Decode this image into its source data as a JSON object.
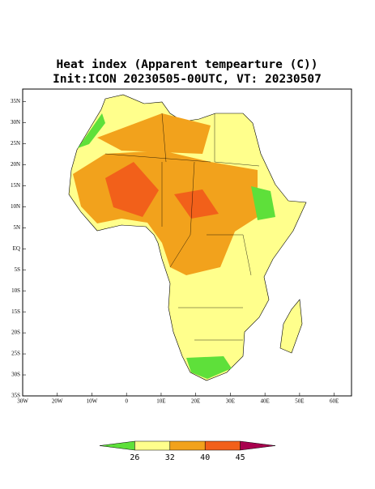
{
  "chart_data": {
    "type": "map",
    "title": "Heat index (Apparent tempearture (C))",
    "subtitle": "Init:ICON 20230505-00UTC, VT: 20230507",
    "xlim": [
      -30,
      65
    ],
    "ylim": [
      -35,
      38
    ],
    "xticks": [
      {
        "value": -30,
        "label": "30W"
      },
      {
        "value": -20,
        "label": "20W"
      },
      {
        "value": -10,
        "label": "10W"
      },
      0,
      {
        "value": 10,
        "label": "10E"
      },
      {
        "value": 20,
        "label": "20E"
      },
      {
        "value": 30,
        "label": "30E"
      },
      {
        "value": 40,
        "label": "40E"
      },
      {
        "value": 50,
        "label": "50E"
      },
      {
        "value": 60,
        "label": "60E"
      }
    ],
    "yticks": [
      {
        "value": 35,
        "label": "35N"
      },
      {
        "value": 30,
        "label": "30N"
      },
      {
        "value": 25,
        "label": "25N"
      },
      {
        "value": 20,
        "label": "20N"
      },
      {
        "value": 15,
        "label": "15N"
      },
      {
        "value": 10,
        "label": "10N"
      },
      {
        "value": 5,
        "label": "5N"
      },
      {
        "value": 0,
        "label": "EQ"
      },
      {
        "value": -5,
        "label": "5S"
      },
      {
        "value": -10,
        "label": "10S"
      },
      {
        "value": -15,
        "label": "15S"
      },
      {
        "value": -20,
        "label": "20S"
      },
      {
        "value": -25,
        "label": "25S"
      },
      {
        "value": -30,
        "label": "30S"
      },
      {
        "value": -35,
        "label": "35S"
      }
    ],
    "colorbar": {
      "levels": [
        26,
        32,
        40,
        45
      ],
      "colors": [
        "#5ee03a",
        "#ffff8c",
        "#f2a21c",
        "#f2601a",
        "#a8004e"
      ]
    }
  }
}
